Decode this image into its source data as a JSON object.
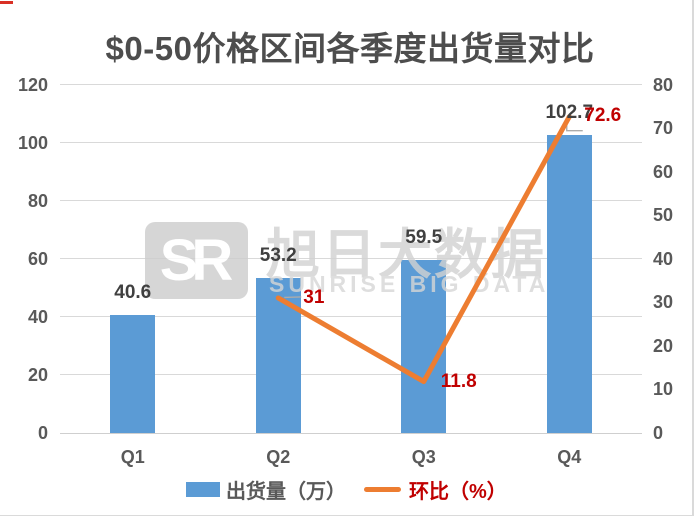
{
  "chart_data": {
    "type": "combo",
    "title": "$0-50价格区间各季度出货量对比",
    "categories": [
      "Q1",
      "Q2",
      "Q3",
      "Q4"
    ],
    "series": [
      {
        "name": "出货量（万）",
        "type": "bar",
        "axis": "left",
        "color": "#5B9BD5",
        "values": [
          40.6,
          53.2,
          59.5,
          102.7
        ],
        "labels": [
          "40.6",
          "53.2",
          "59.5",
          "102.7"
        ],
        "label_color": "#404040"
      },
      {
        "name": "环比（%）",
        "type": "line",
        "axis": "right",
        "color": "#ED7D31",
        "values": [
          null,
          31,
          11.8,
          72.6
        ],
        "label_color": "#C00000",
        "points": [
          {
            "category": "Q2",
            "value": 31,
            "label": "31",
            "label_dx": 25,
            "label_dy": 0,
            "leader": "dash"
          },
          {
            "category": "Q3",
            "value": 11.8,
            "label": "11.8",
            "label_dx": 17,
            "label_dy": 0,
            "leader": "none"
          },
          {
            "category": "Q4",
            "value": 72.6,
            "label": "72.6",
            "label_dx": 15,
            "label_dy": -1,
            "leader": "elbow"
          }
        ]
      }
    ],
    "axes": {
      "left": {
        "min": 0,
        "max": 120,
        "step": 20,
        "ticks": [
          "0",
          "20",
          "40",
          "60",
          "80",
          "100",
          "120"
        ]
      },
      "right": {
        "min": 0,
        "max": 80,
        "step": 10,
        "ticks": [
          "0",
          "10",
          "20",
          "30",
          "40",
          "50",
          "60",
          "70",
          "80"
        ]
      }
    },
    "legend": [
      {
        "label": "出货量（万）",
        "swatch": "bar",
        "color": "#5B9BD5",
        "text_color": "#595959"
      },
      {
        "label": "环比（%）",
        "swatch": "line",
        "color": "#ED7D31",
        "text_color": "#C00000"
      }
    ],
    "grid": true,
    "legend_position": "bottom"
  },
  "watermark": {
    "logo_text": "SR",
    "brand_cn": "旭日大数据",
    "brand_en": "SUNRISE BIG DATA"
  },
  "colors": {
    "bar_blue": "#5B9BD5",
    "line_orange": "#ED7D31",
    "callout_red": "#C00000",
    "axis_text": "#595959",
    "title_text": "#4d4d4d",
    "gridline": "#D9D9D9",
    "watermark_gray": "#d2d2d2"
  }
}
